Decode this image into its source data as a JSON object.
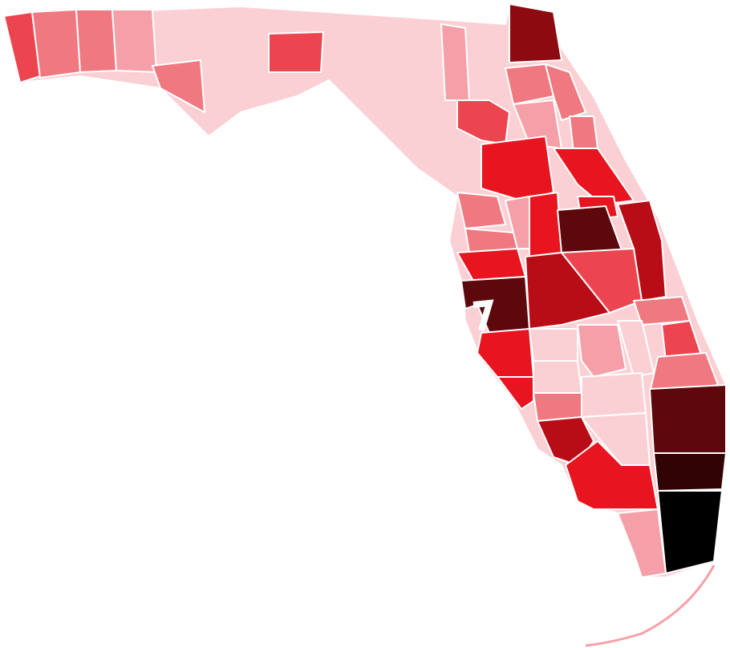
{
  "map": {
    "palette": [
      "#fbd0d4",
      "#f5a0a8",
      "#f07880",
      "#ec4550",
      "#e8141f",
      "#b80d16",
      "#8c0a10",
      "#5c080c",
      "#300405",
      "#000000"
    ]
  }
}
